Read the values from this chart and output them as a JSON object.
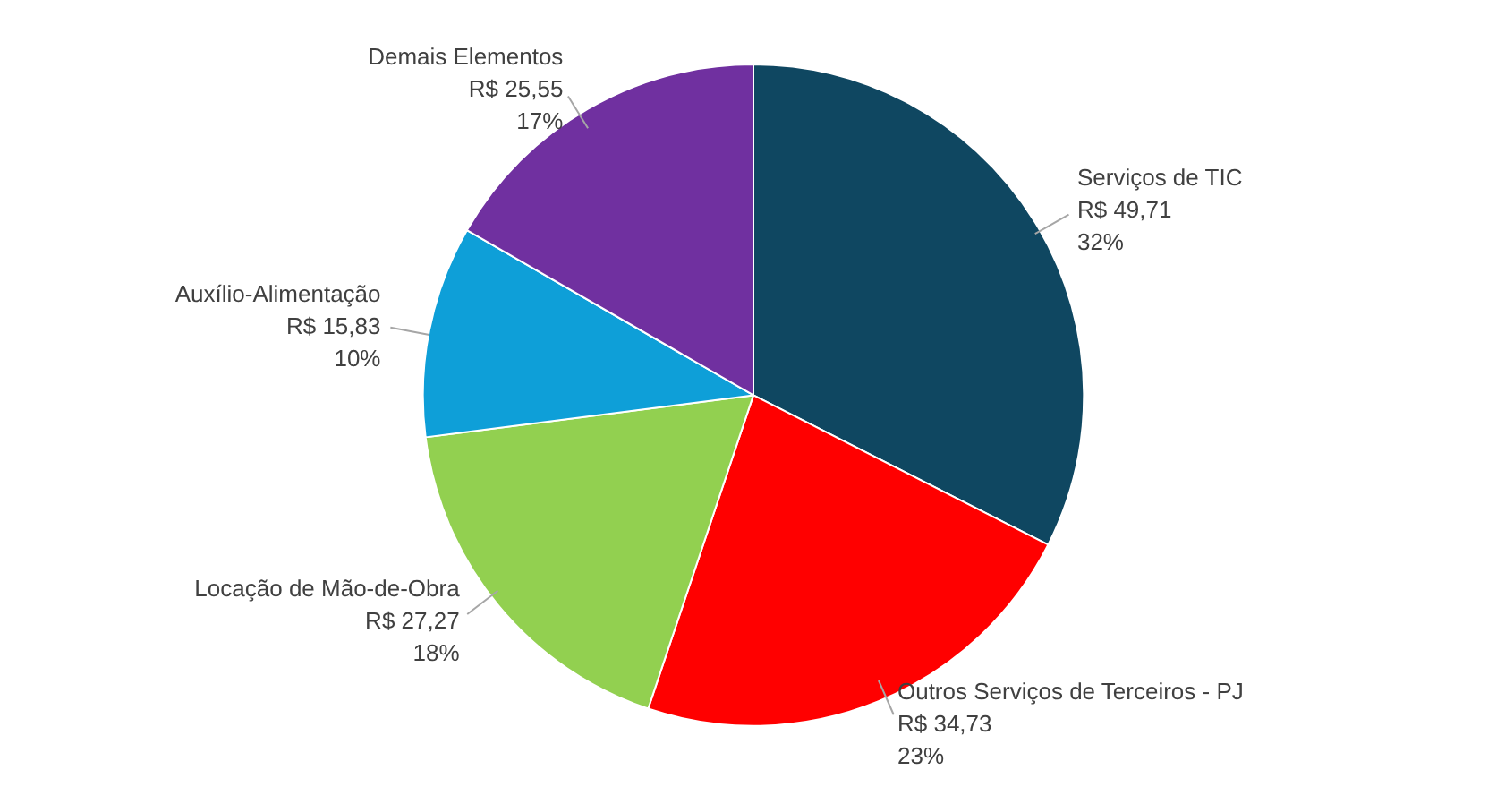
{
  "chart_data": {
    "type": "pie",
    "categories": [
      "Serviços de TIC",
      "Outros Serviços de Terceiros - PJ",
      "Locação de Mão-de-Obra",
      "Auxílio-Alimentação",
      "Demais Elementos"
    ],
    "values": [
      49.71,
      34.73,
      27.27,
      15.83,
      25.55
    ],
    "colors": [
      "#0f4761",
      "#ff0000",
      "#92d050",
      "#0e9fd8",
      "#7030a0"
    ],
    "value_labels": [
      "R$ 49,71\n32%",
      "R$ 34,73\n23%",
      "R$ 27,27\n18%",
      "R$ 15,83\n10%",
      "R$ 25,55\n17%"
    ]
  }
}
